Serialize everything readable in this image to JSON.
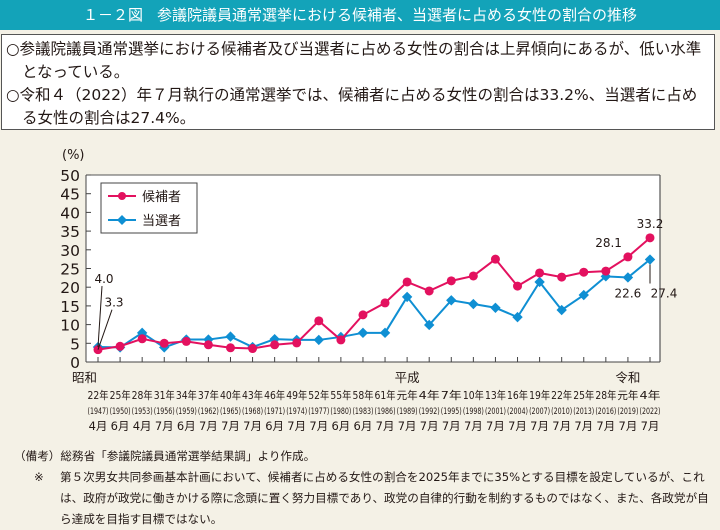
{
  "header": {
    "figure_number": "１－２図",
    "title": "参議院議員通常選挙における候補者、当選者に占める女性の割合の推移"
  },
  "summary": [
    "○参議院議員通常選挙における候補者及び当選者に占める女性の割合は上昇傾向にあるが、低い水準となっている。",
    "○令和４（2022）年７月執行の通常選挙では、候補者に占める女性の割合は33.2%、当選者に占める女性の割合は27.4%。"
  ],
  "chart_data": {
    "type": "line",
    "title": "",
    "ylabel": "(%)",
    "xlabel": "",
    "ylim": [
      0,
      50
    ],
    "yticks": [
      0,
      5,
      10,
      15,
      20,
      25,
      30,
      35,
      40,
      45,
      50
    ],
    "grid": false,
    "legend": "top-left",
    "eras": [
      {
        "label": "昭和",
        "index": 0
      },
      {
        "label": "平成",
        "index": 14
      },
      {
        "label": "令和",
        "index": 24
      }
    ],
    "categories": [
      {
        "year": "22年",
        "western": "(1947)",
        "month": "4月"
      },
      {
        "year": "25年",
        "western": "(1950)",
        "month": "6月"
      },
      {
        "year": "28年",
        "western": "(1953)",
        "month": "4月"
      },
      {
        "year": "31年",
        "western": "(1956)",
        "month": "7月"
      },
      {
        "year": "34年",
        "western": "(1959)",
        "month": "6月"
      },
      {
        "year": "37年",
        "western": "(1962)",
        "month": "7月"
      },
      {
        "year": "40年",
        "western": "(1965)",
        "month": "7月"
      },
      {
        "year": "43年",
        "western": "(1968)",
        "month": "7月"
      },
      {
        "year": "46年",
        "western": "(1971)",
        "month": "6月"
      },
      {
        "year": "49年",
        "western": "(1974)",
        "month": "7月"
      },
      {
        "year": "52年",
        "western": "(1977)",
        "month": "7月"
      },
      {
        "year": "55年",
        "western": "(1980)",
        "month": "6月"
      },
      {
        "year": "58年",
        "western": "(1983)",
        "month": "6月"
      },
      {
        "year": "61年",
        "western": "(1986)",
        "month": "7月"
      },
      {
        "year": "元年",
        "western": "(1989)",
        "month": "7月"
      },
      {
        "year": "4年",
        "western": "(1992)",
        "month": "7月"
      },
      {
        "year": "7年",
        "western": "(1995)",
        "month": "7月"
      },
      {
        "year": "10年",
        "western": "(1998)",
        "month": "7月"
      },
      {
        "year": "13年",
        "western": "(2001)",
        "month": "7月"
      },
      {
        "year": "16年",
        "western": "(2004)",
        "month": "7月"
      },
      {
        "year": "19年",
        "western": "(2007)",
        "month": "7月"
      },
      {
        "year": "22年",
        "western": "(2010)",
        "month": "7月"
      },
      {
        "year": "25年",
        "western": "(2013)",
        "month": "7月"
      },
      {
        "year": "28年",
        "western": "(2016)",
        "month": "7月"
      },
      {
        "year": "元年",
        "western": "(2019)",
        "month": "7月"
      },
      {
        "year": "4年",
        "western": "(2022)",
        "month": "7月"
      }
    ],
    "series": [
      {
        "name": "候補者",
        "color": "#e3115f",
        "marker": "circle",
        "values": [
          3.3,
          4.2,
          6.2,
          5.0,
          5.5,
          4.6,
          3.8,
          3.6,
          4.6,
          5.1,
          11.0,
          5.9,
          12.6,
          15.8,
          21.4,
          19.0,
          21.7,
          23.0,
          27.5,
          20.3,
          23.8,
          22.7,
          24.0,
          24.3,
          28.1,
          33.2
        ]
      },
      {
        "name": "当選者",
        "color": "#0f8fd3",
        "marker": "diamond",
        "values": [
          4.0,
          3.9,
          7.8,
          3.9,
          6.0,
          6.0,
          6.8,
          4.0,
          6.1,
          5.9,
          5.9,
          6.7,
          7.8,
          7.8,
          17.4,
          9.9,
          16.5,
          15.5,
          14.5,
          12.0,
          21.4,
          13.9,
          17.9,
          22.9,
          22.6,
          27.4
        ]
      }
    ],
    "annotations": [
      {
        "text": "4.0",
        "series": 1,
        "index": 0
      },
      {
        "text": "3.3",
        "series": 0,
        "index": 0
      },
      {
        "text": "28.1",
        "series": 0,
        "index": 24
      },
      {
        "text": "33.2",
        "series": 0,
        "index": 25
      },
      {
        "text": "22.6",
        "series": 1,
        "index": 24
      },
      {
        "text": "27.4",
        "series": 1,
        "index": 25
      }
    ]
  },
  "notes": {
    "source": "（備考）総務省「参議院議員通常選挙結果調」より作成。",
    "asterisk": "※",
    "remark": "第５次男女共同参画基本計画において、候補者に占める女性の割合を2025年までに35%とする目標を設定しているが、これは、政府が政党に働きかける際に念頭に置く努力目標であり、政党の自律的行動を制約するものではなく、また、各政党が自ら達成を目指す目標ではない。"
  }
}
